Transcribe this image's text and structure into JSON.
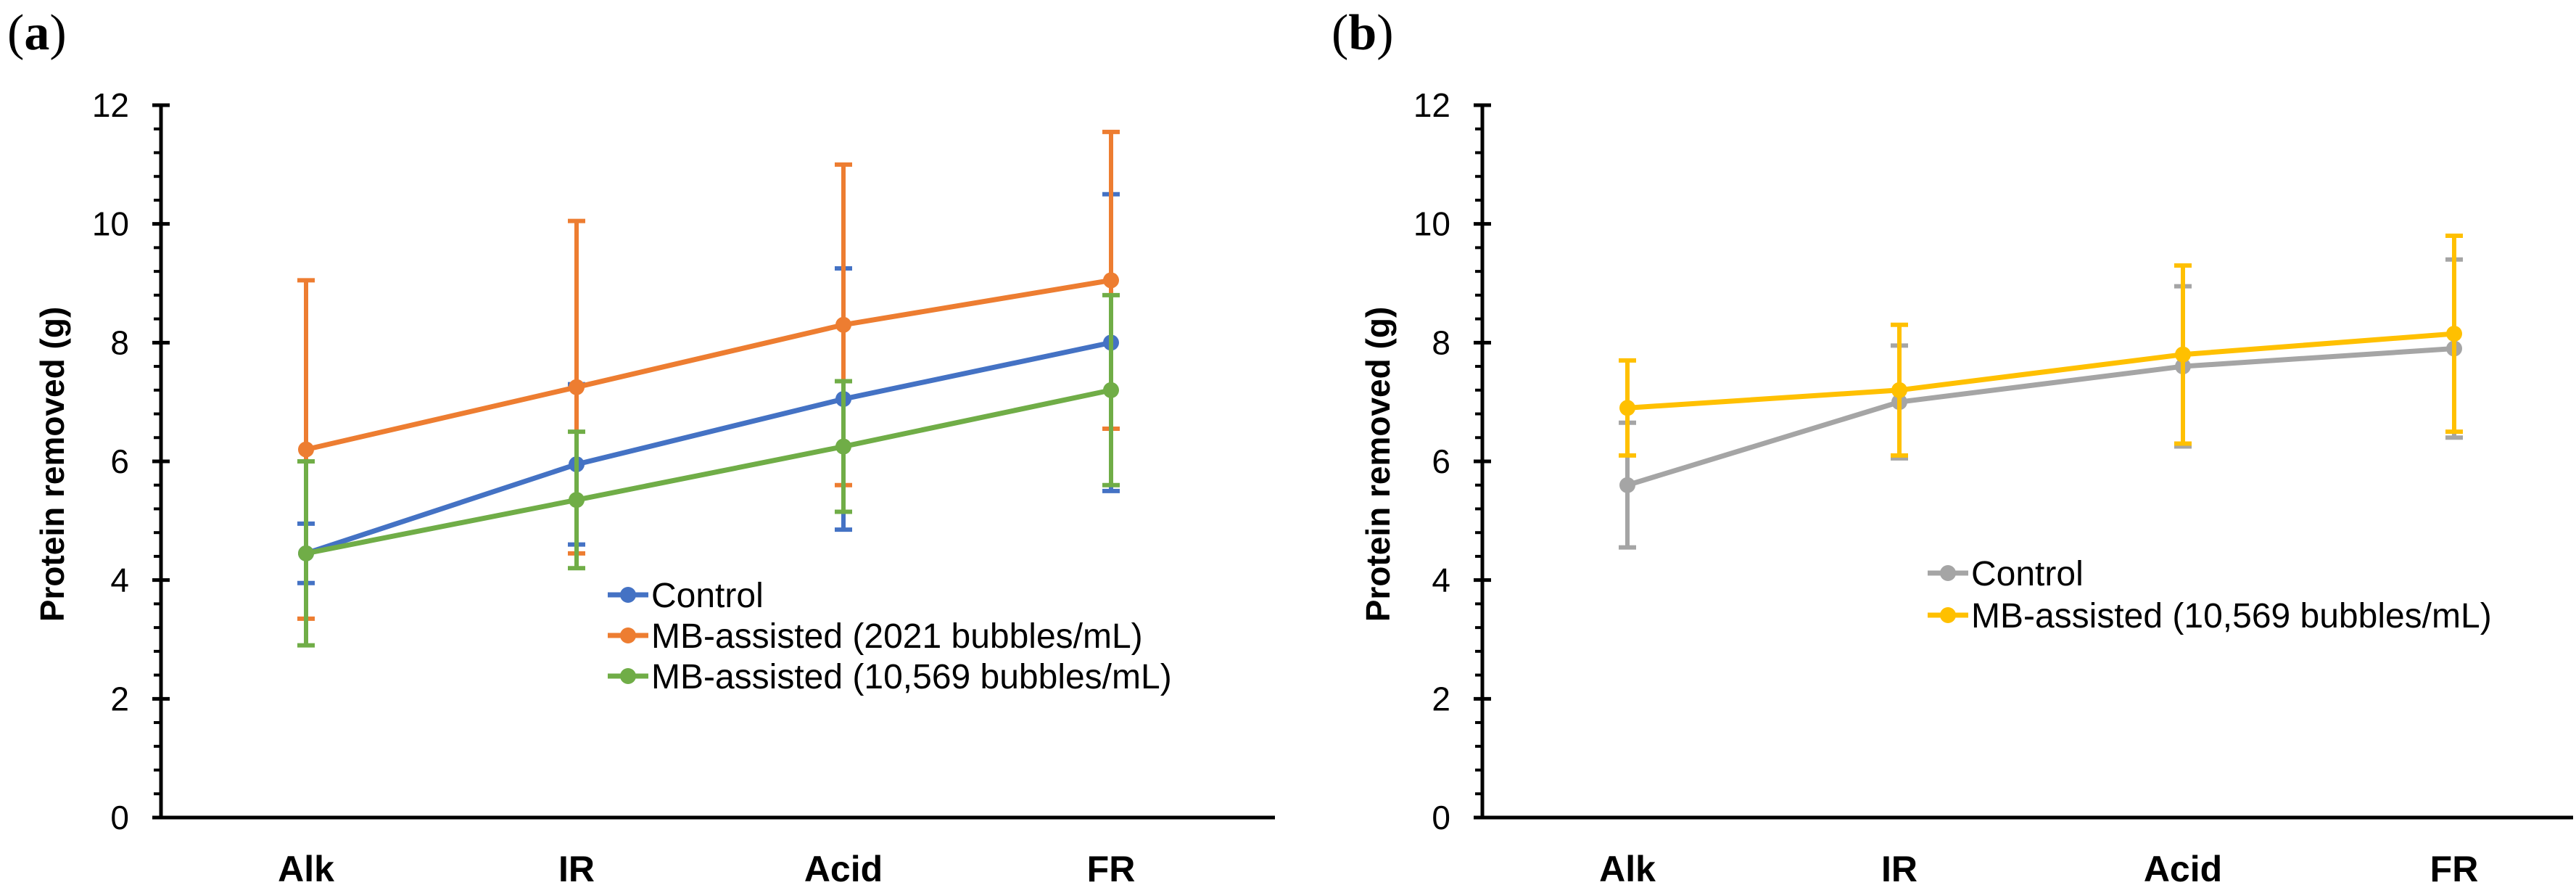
{
  "chart_data": [
    {
      "panel": "a",
      "type": "line",
      "ylabel": "Protein removed (g)",
      "xlabel": "",
      "ylim": [
        0,
        12
      ],
      "yticks": [
        0,
        2,
        4,
        6,
        8,
        10,
        12
      ],
      "categories": [
        "Alk",
        "IR",
        "Acid",
        "FR"
      ],
      "legend": "center-right",
      "series": [
        {
          "name": "Control",
          "color": "#4472C4",
          "values": [
            4.45,
            5.95,
            7.05,
            8.0
          ],
          "err": [
            0.5,
            1.35,
            2.2,
            2.5
          ]
        },
        {
          "name": "MB-assisted (2021 bubbles/mL)",
          "color": "#ED7D31",
          "values": [
            6.2,
            7.25,
            8.3,
            9.05
          ],
          "err": [
            2.85,
            2.8,
            2.7,
            2.5
          ]
        },
        {
          "name": "MB-assisted (10,569 bubbles/mL)",
          "color": "#70AD47",
          "values": [
            4.45,
            5.35,
            6.25,
            7.2
          ],
          "err": [
            1.55,
            1.15,
            1.1,
            1.6
          ]
        }
      ]
    },
    {
      "panel": "b",
      "type": "line",
      "ylabel": "Protein removed (g)",
      "xlabel": "",
      "ylim": [
        0,
        12
      ],
      "yticks": [
        0,
        2,
        4,
        6,
        8,
        10,
        12
      ],
      "categories": [
        "Alk",
        "IR",
        "Acid",
        "FR"
      ],
      "legend": "center-right",
      "series": [
        {
          "name": "Control",
          "color": "#A5A5A5",
          "values": [
            5.6,
            7.0,
            7.6,
            7.9
          ],
          "err": [
            1.05,
            0.95,
            1.35,
            1.5
          ]
        },
        {
          "name": "MB-assisted (10,569 bubbles/mL)",
          "color": "#FFC000",
          "values": [
            6.9,
            7.2,
            7.8,
            8.15
          ],
          "err": [
            0.8,
            1.1,
            1.5,
            1.65
          ]
        }
      ]
    }
  ],
  "panels": [
    {
      "label_open": "(",
      "label_letter": "a",
      "label_close": ")"
    },
    {
      "label_open": "(",
      "label_letter": "b",
      "label_close": ")"
    }
  ]
}
